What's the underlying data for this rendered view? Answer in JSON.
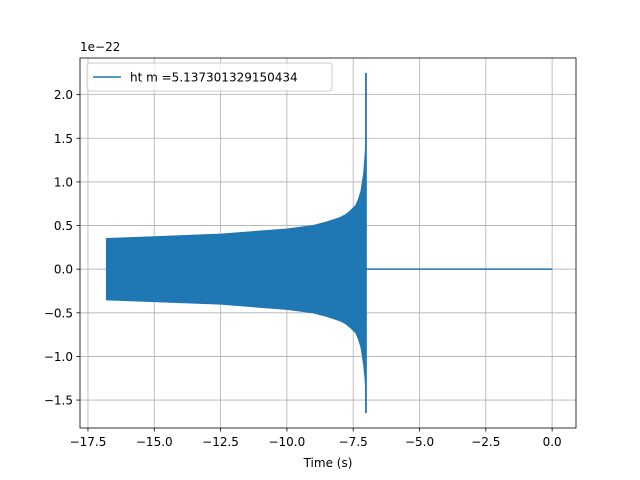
{
  "chart_data": {
    "type": "line",
    "title": "",
    "xlabel": "Time (s)",
    "ylabel": "",
    "y_offset_label": "1e−22",
    "xlim": [
      -17.8,
      0.9
    ],
    "ylim": [
      -1.82,
      2.42
    ],
    "xticks": [
      -17.5,
      -15.0,
      -12.5,
      -10.0,
      -7.5,
      -5.0,
      -2.5,
      0.0
    ],
    "xtick_labels": [
      "−17.5",
      "−15.0",
      "−12.5",
      "−10.0",
      "−7.5",
      "−5.0",
      "−2.5",
      "0.0"
    ],
    "yticks": [
      -1.5,
      -1.0,
      -0.5,
      0.0,
      0.5,
      1.0,
      1.5,
      2.0
    ],
    "ytick_labels": [
      "−1.5",
      "−1.0",
      "−0.5",
      "0.0",
      "0.5",
      "1.0",
      "1.5",
      "2.0"
    ],
    "grid": true,
    "legend_position": "upper-left",
    "series": [
      {
        "name": "ht m =5.137301329150434",
        "color": "#1f77b4",
        "envelope_x": [
          -16.8,
          -15.0,
          -12.5,
          -10.0,
          -9.0,
          -8.5,
          -8.0,
          -7.8,
          -7.6,
          -7.4,
          -7.3,
          -7.2,
          -7.1,
          -7.05,
          -7.02
        ],
        "envelope_upper": [
          0.35,
          0.37,
          0.4,
          0.46,
          0.5,
          0.54,
          0.59,
          0.62,
          0.67,
          0.73,
          0.8,
          0.9,
          1.1,
          1.3,
          1.45
        ],
        "envelope_lower": [
          -0.35,
          -0.37,
          -0.4,
          -0.46,
          -0.5,
          -0.54,
          -0.59,
          -0.62,
          -0.67,
          -0.73,
          -0.8,
          -0.9,
          -1.1,
          -1.25,
          -1.4
        ],
        "spike_x": -7.02,
        "spike_max": 2.25,
        "spike_min": -1.65,
        "tail_x": [
          -7.02,
          0.0
        ],
        "tail_y": [
          0.0,
          0.0
        ]
      }
    ]
  }
}
